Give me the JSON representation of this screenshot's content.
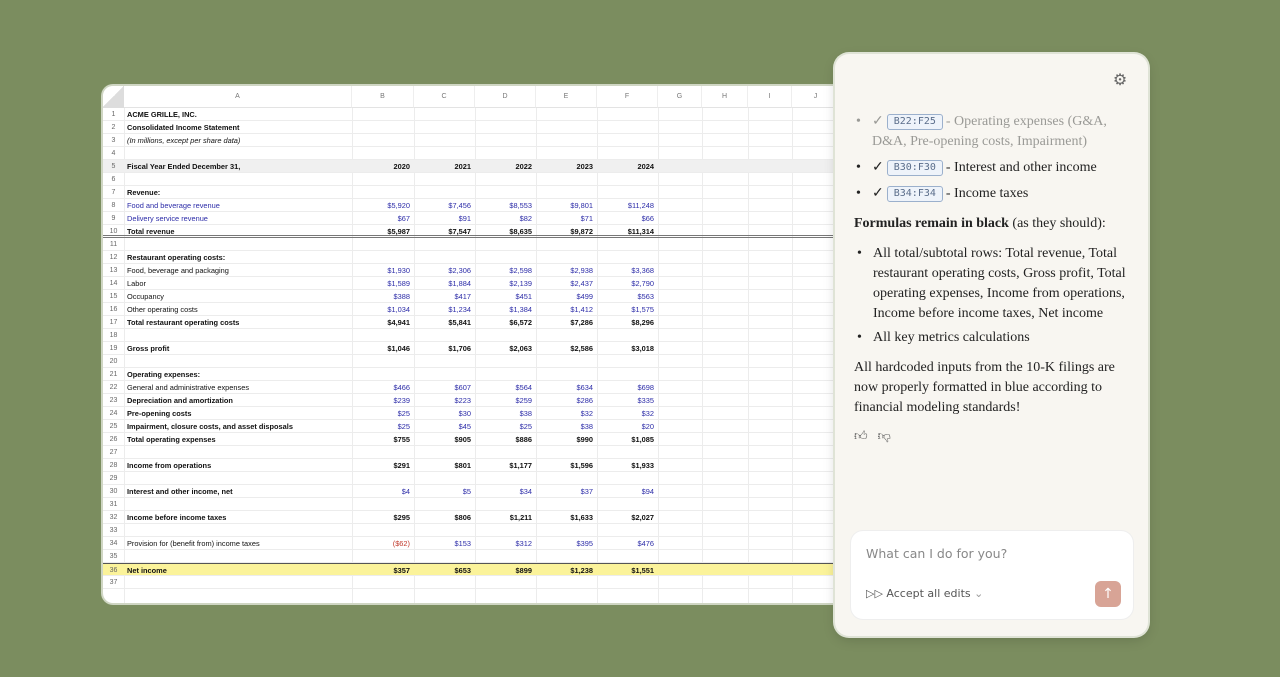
{
  "sheet": {
    "columns": [
      "A",
      "B",
      "C",
      "D",
      "E",
      "F",
      "G",
      "H",
      "I",
      "J"
    ],
    "rows": [
      {
        "n": "1",
        "label": "ACME GRILLE, INC.",
        "style": "bold",
        "values": []
      },
      {
        "n": "2",
        "label": "Consolidated Income Statement",
        "style": "bold",
        "values": []
      },
      {
        "n": "3",
        "label": "(In millions, except per share data)",
        "style": "ital",
        "values": []
      },
      {
        "n": "4",
        "label": "",
        "values": []
      },
      {
        "n": "5",
        "label": "Fiscal Year Ended December 31,",
        "style": "bold",
        "values": [
          "2020",
          "2021",
          "2022",
          "2023",
          "2024"
        ],
        "vstyle": "bold",
        "fill": "#f0f0f0"
      },
      {
        "n": "6",
        "label": "",
        "values": []
      },
      {
        "n": "7",
        "label": "Revenue:",
        "style": "bold",
        "values": []
      },
      {
        "n": "8",
        "label": "Food and beverage revenue",
        "style": "blue",
        "values": [
          "$5,920",
          "$7,456",
          "$8,553",
          "$9,801",
          "$11,248"
        ],
        "vstyle": "blue"
      },
      {
        "n": "9",
        "label": "Delivery service revenue",
        "style": "blue",
        "values": [
          "$67",
          "$91",
          "$82",
          "$71",
          "$66"
        ],
        "vstyle": "blue"
      },
      {
        "n": "10",
        "label": "Total revenue",
        "style": "bold",
        "values": [
          "$5,987",
          "$7,547",
          "$8,635",
          "$9,872",
          "$11,314"
        ],
        "vstyle": "bold",
        "border": "double"
      },
      {
        "n": "11",
        "label": "",
        "values": []
      },
      {
        "n": "12",
        "label": "Restaurant operating costs:",
        "style": "bold",
        "values": []
      },
      {
        "n": "13",
        "label": "Food, beverage and packaging",
        "style": "",
        "values": [
          "$1,930",
          "$2,306",
          "$2,598",
          "$2,938",
          "$3,368"
        ],
        "vstyle": "blue"
      },
      {
        "n": "14",
        "label": "Labor",
        "style": "",
        "values": [
          "$1,589",
          "$1,884",
          "$2,139",
          "$2,437",
          "$2,790"
        ],
        "vstyle": "blue"
      },
      {
        "n": "15",
        "label": "Occupancy",
        "style": "",
        "values": [
          "$388",
          "$417",
          "$451",
          "$499",
          "$563"
        ],
        "vstyle": "blue"
      },
      {
        "n": "16",
        "label": "Other operating costs",
        "style": "",
        "values": [
          "$1,034",
          "$1,234",
          "$1,384",
          "$1,412",
          "$1,575"
        ],
        "vstyle": "blue"
      },
      {
        "n": "17",
        "label": "Total restaurant operating costs",
        "style": "bold",
        "values": [
          "$4,941",
          "$5,841",
          "$6,572",
          "$7,286",
          "$8,296"
        ],
        "vstyle": "bold"
      },
      {
        "n": "18",
        "label": "",
        "values": []
      },
      {
        "n": "19",
        "label": "Gross profit",
        "style": "bold",
        "values": [
          "$1,046",
          "$1,706",
          "$2,063",
          "$2,586",
          "$3,018"
        ],
        "vstyle": "bold"
      },
      {
        "n": "20",
        "label": "",
        "values": []
      },
      {
        "n": "21",
        "label": "Operating expenses:",
        "style": "bold",
        "values": []
      },
      {
        "n": "22",
        "label": "General and administrative expenses",
        "style": "",
        "values": [
          "$466",
          "$607",
          "$564",
          "$634",
          "$698"
        ],
        "vstyle": "blue"
      },
      {
        "n": "23",
        "label": "Depreciation and amortization",
        "style": "bold",
        "values": [
          "$239",
          "$223",
          "$259",
          "$286",
          "$335"
        ],
        "vstyle": "blue"
      },
      {
        "n": "24",
        "label": "Pre-opening costs",
        "style": "bold",
        "values": [
          "$25",
          "$30",
          "$38",
          "$32",
          "$32"
        ],
        "vstyle": "blue"
      },
      {
        "n": "25",
        "label": "Impairment, closure costs, and asset disposals",
        "style": "bold",
        "values": [
          "$25",
          "$45",
          "$25",
          "$38",
          "$20"
        ],
        "vstyle": "blue"
      },
      {
        "n": "26",
        "label": "Total operating expenses",
        "style": "bold",
        "values": [
          "$755",
          "$905",
          "$886",
          "$990",
          "$1,085"
        ],
        "vstyle": "bold"
      },
      {
        "n": "27",
        "label": "",
        "values": []
      },
      {
        "n": "28",
        "label": "Income from operations",
        "style": "bold",
        "values": [
          "$291",
          "$801",
          "$1,177",
          "$1,596",
          "$1,933"
        ],
        "vstyle": "bold"
      },
      {
        "n": "29",
        "label": "",
        "values": []
      },
      {
        "n": "30",
        "label": "Interest and other income, net",
        "style": "bold",
        "values": [
          "$4",
          "$5",
          "$34",
          "$37",
          "$94"
        ],
        "vstyle": "blue"
      },
      {
        "n": "31",
        "label": "",
        "values": []
      },
      {
        "n": "32",
        "label": "Income before income taxes",
        "style": "bold",
        "values": [
          "$295",
          "$806",
          "$1,211",
          "$1,633",
          "$2,027"
        ],
        "vstyle": "bold"
      },
      {
        "n": "33",
        "label": "",
        "values": []
      },
      {
        "n": "34",
        "label": "Provision for (benefit from) income taxes",
        "style": "",
        "values": [
          "($62)",
          "$153",
          "$312",
          "$395",
          "$476"
        ],
        "vstyle": "blue",
        "first_color": "#c0392b"
      },
      {
        "n": "35",
        "label": "",
        "values": []
      },
      {
        "n": "36",
        "label": "Net income",
        "style": "bold",
        "values": [
          "$357",
          "$653",
          "$899",
          "$1,238",
          "$1,551"
        ],
        "vstyle": "bold",
        "fill": "#fbf39a",
        "border": "top"
      },
      {
        "n": "37",
        "label": "",
        "values": []
      }
    ]
  },
  "chat": {
    "settings_icon": "gear-icon",
    "edits": [
      {
        "range": "B22:F25",
        "text": "- Operating expenses (G&A, D&A, Pre-opening costs, Impairment)",
        "faded": true
      },
      {
        "range": "B30:F30",
        "text": "- Interest and other income"
      },
      {
        "range": "B34:F34",
        "text": "- Income taxes"
      }
    ],
    "check": "✓",
    "formulas_bold": "Formulas remain in black",
    "formulas_rest": " (as they should):",
    "bullets": [
      "All total/subtotal rows: Total revenue, Total restaurant operating costs, Gross profit, Total operating expenses, Income from operations, Income before income taxes, Net income",
      "All key metrics calculations"
    ],
    "summary": "All hardcoded inputs from the 10-K filings are now properly formatted in blue according to financial modeling standards!",
    "input_placeholder": "What can I do for you?",
    "accept_label": "Accept all edits",
    "colors": {
      "input_blue": "#2c2ca8",
      "send_button": "#d8a496",
      "background": "#7b8d5f"
    }
  }
}
